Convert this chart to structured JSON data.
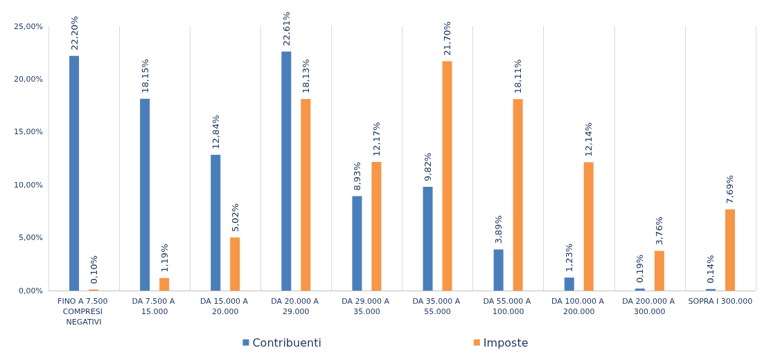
{
  "chart_data": {
    "type": "bar",
    "categories": [
      "FINO A 7.500 COMPRESI NEGATIVI",
      "DA 7.500 A 15.000",
      "DA 15.000 A 20.000",
      "DA 20.000 A 29.000",
      "DA 29.000 A 35.000",
      "DA 35.000 A 55.000",
      "DA 55.000 A 100.000",
      "DA 100.000 A 200.000",
      "DA 200.000 A 300.000",
      "SOPRA I 300.000"
    ],
    "series": [
      {
        "name": "Contribuenti",
        "color": "#4a7ebb",
        "values": [
          22.2,
          18.15,
          12.84,
          22.61,
          8.93,
          9.82,
          3.89,
          1.23,
          0.19,
          0.14
        ],
        "value_labels": [
          "22,20%",
          "18,15%",
          "12,84%",
          "22,61%",
          "8,93%",
          "9,82%",
          "3,89%",
          "1,23%",
          "0,19%",
          "0,14%"
        ]
      },
      {
        "name": "Imposte",
        "color": "#f79646",
        "values": [
          0.1,
          1.19,
          5.02,
          18.13,
          12.17,
          21.7,
          18.11,
          12.14,
          3.76,
          7.69
        ],
        "value_labels": [
          "0,10%",
          "1,19%",
          "5,02%",
          "18,13%",
          "12,17%",
          "21,70%",
          "18,11%",
          "12,14%",
          "3,76%",
          "7,69%"
        ]
      }
    ],
    "ylim": [
      0,
      25
    ],
    "yticks": [
      {
        "value": 0,
        "label": "0,00%"
      },
      {
        "value": 5,
        "label": "5,00%"
      },
      {
        "value": 10,
        "label": "10,00%"
      },
      {
        "value": 15,
        "label": "15,00%"
      },
      {
        "value": 20,
        "label": "20,00%"
      },
      {
        "value": 25,
        "label": "25,00%"
      }
    ],
    "grid": "x",
    "legend": "bottom"
  }
}
